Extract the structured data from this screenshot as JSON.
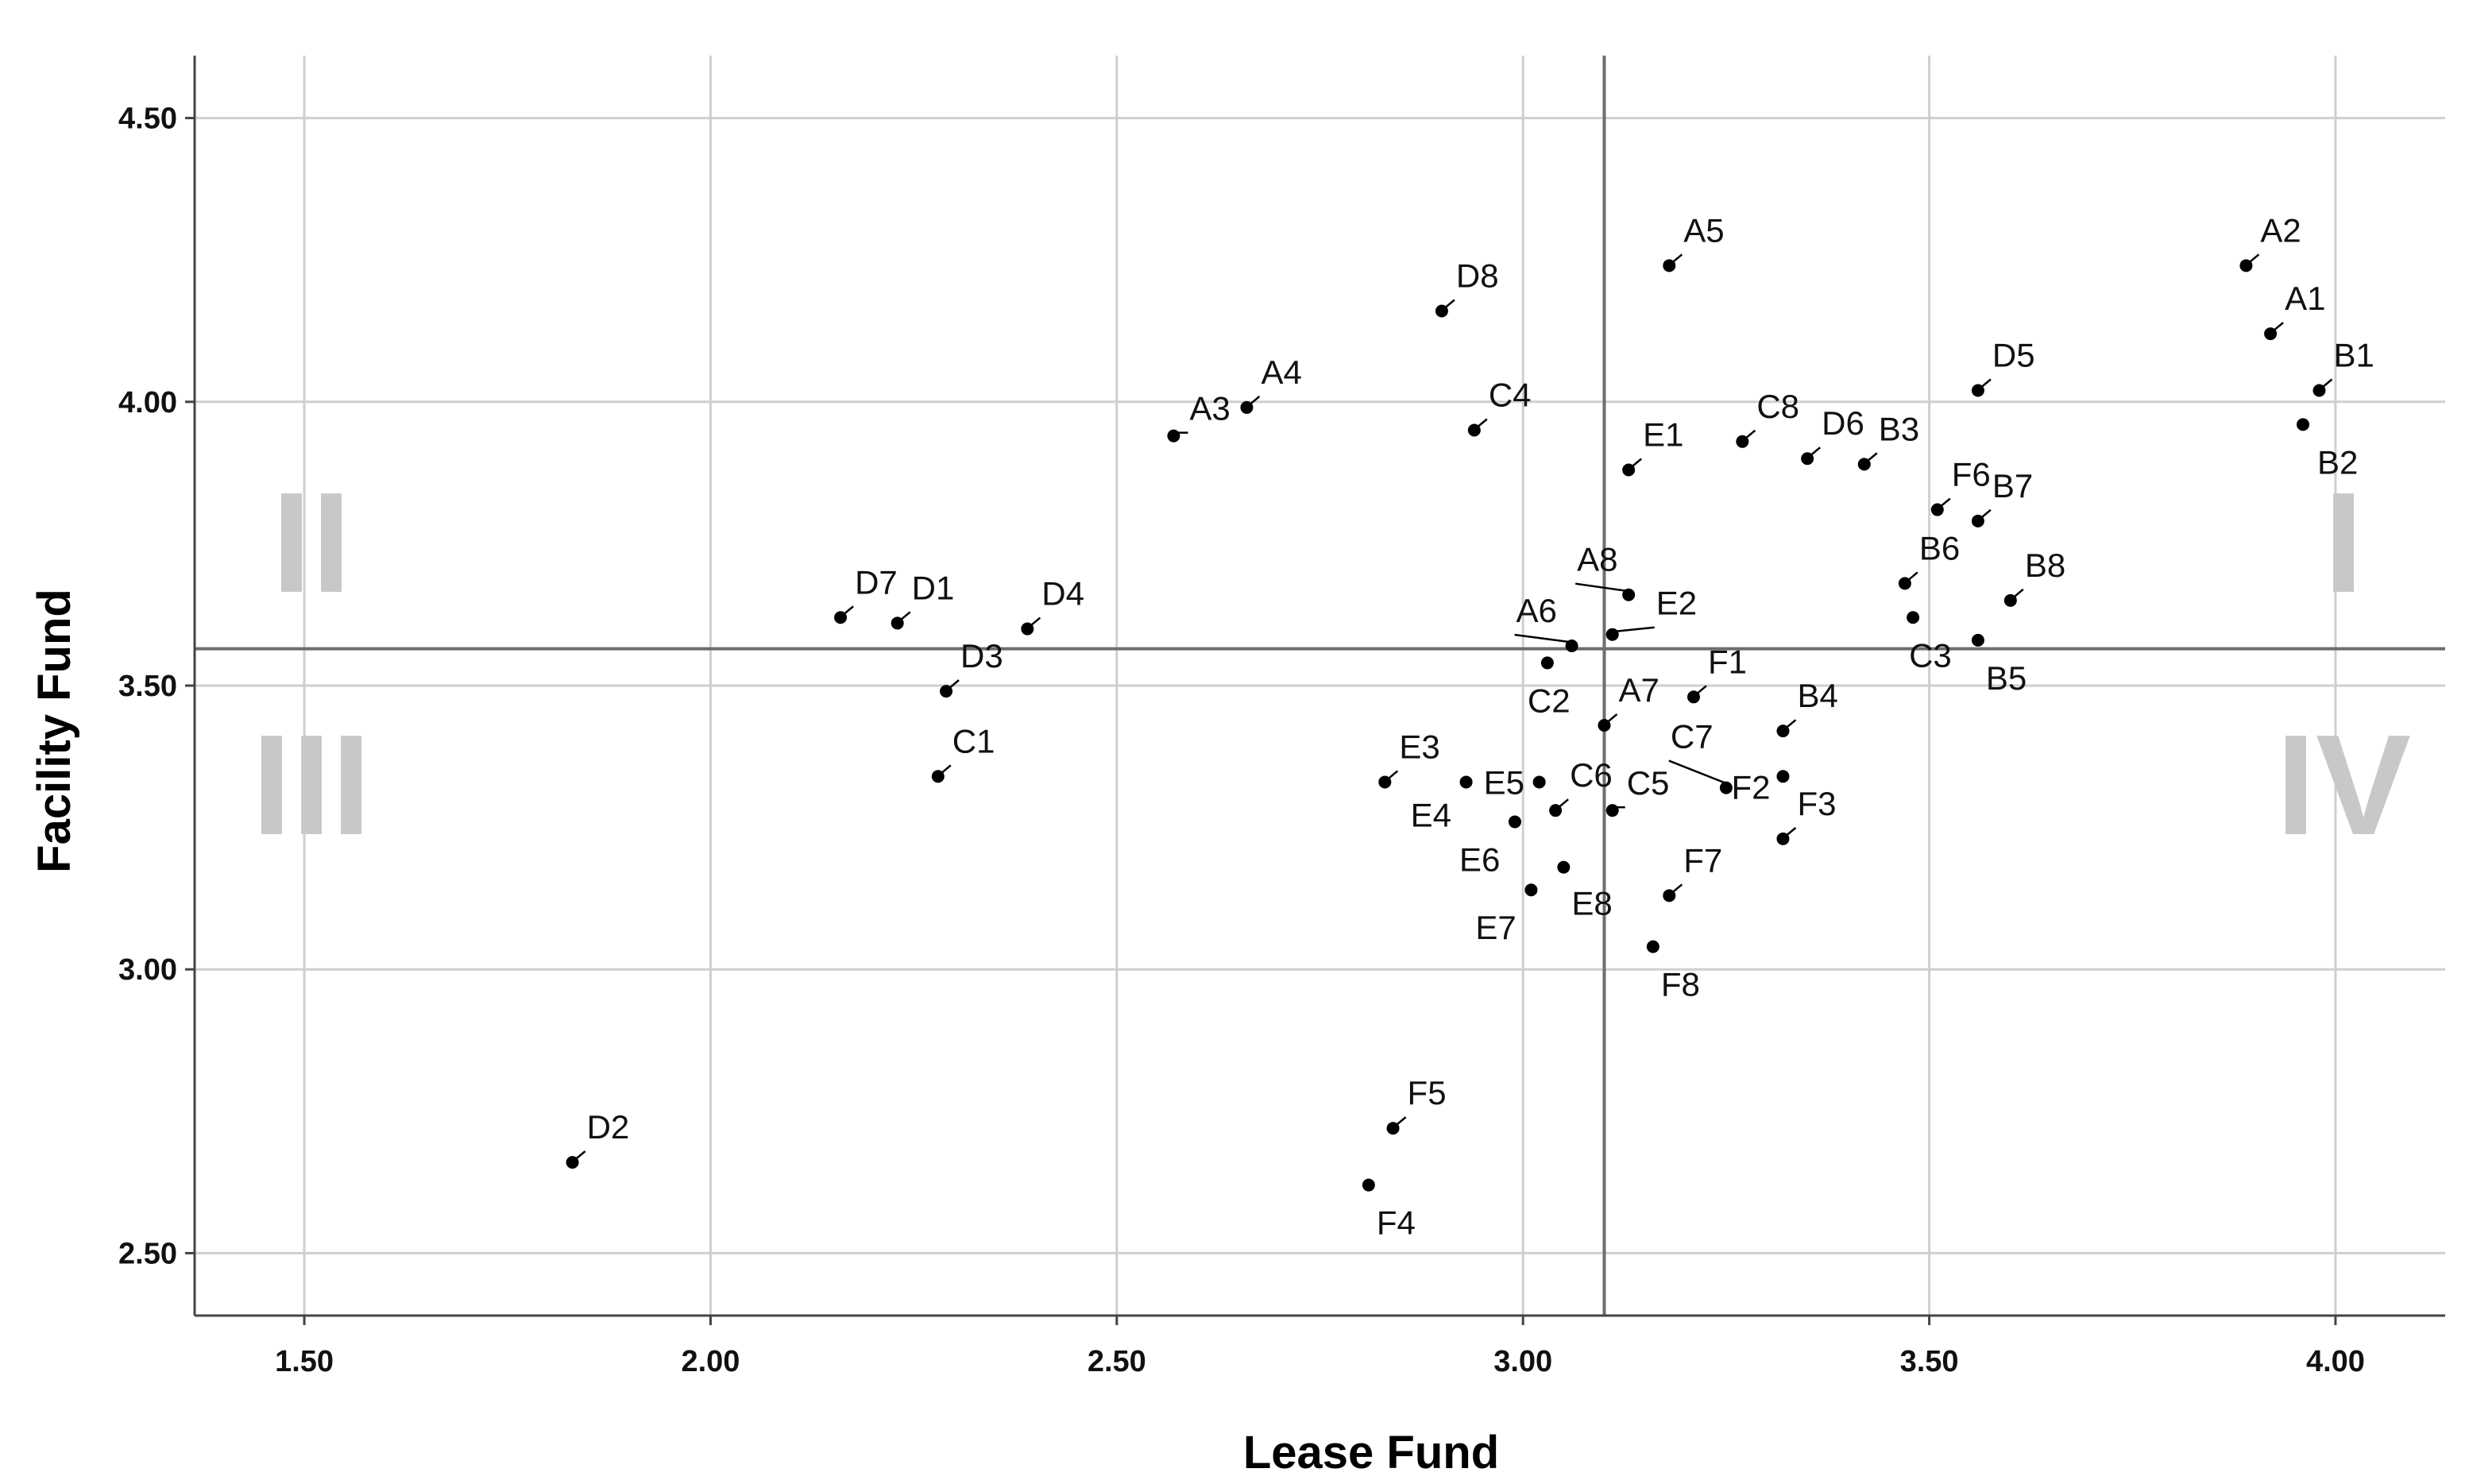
{
  "chart_data": {
    "type": "scatter",
    "xlabel": "Lease Fund",
    "ylabel": "Facility Fund",
    "xlim": [
      1.365,
      4.135
    ],
    "ylim": [
      2.39,
      4.61
    ],
    "x_ticks": [
      1.5,
      2.0,
      2.5,
      3.0,
      3.5,
      4.0
    ],
    "x_tick_labels": [
      "1.50",
      "2.00",
      "2.50",
      "3.00",
      "3.50",
      "4.00"
    ],
    "y_ticks": [
      2.5,
      3.0,
      3.5,
      4.0,
      4.5
    ],
    "y_tick_labels": [
      "2.50",
      "3.00",
      "3.50",
      "4.00",
      "4.50"
    ],
    "grid": true,
    "reference_lines": {
      "x_mean": 3.1,
      "y_mean": 3.565
    },
    "quadrant_labels": [
      "I",
      "II",
      "III",
      "IV"
    ],
    "point_color": "#000000",
    "points": [
      {
        "label": "A1",
        "x": 3.92,
        "y": 4.12
      },
      {
        "label": "A2",
        "x": 3.89,
        "y": 4.24
      },
      {
        "label": "A3",
        "x": 2.57,
        "y": 3.94
      },
      {
        "label": "A4",
        "x": 2.66,
        "y": 3.99
      },
      {
        "label": "A5",
        "x": 3.18,
        "y": 4.24
      },
      {
        "label": "A6",
        "x": 3.06,
        "y": 3.57
      },
      {
        "label": "A7",
        "x": 3.1,
        "y": 3.43
      },
      {
        "label": "A8",
        "x": 3.13,
        "y": 3.66
      },
      {
        "label": "B1",
        "x": 3.98,
        "y": 4.02
      },
      {
        "label": "B2",
        "x": 3.96,
        "y": 3.96
      },
      {
        "label": "B3",
        "x": 3.42,
        "y": 3.89
      },
      {
        "label": "B4",
        "x": 3.32,
        "y": 3.42
      },
      {
        "label": "B5",
        "x": 3.56,
        "y": 3.58
      },
      {
        "label": "B6",
        "x": 3.47,
        "y": 3.68
      },
      {
        "label": "B7",
        "x": 3.56,
        "y": 3.79
      },
      {
        "label": "B8",
        "x": 3.6,
        "y": 3.65
      },
      {
        "label": "C1",
        "x": 2.28,
        "y": 3.34
      },
      {
        "label": "C2",
        "x": 3.03,
        "y": 3.54
      },
      {
        "label": "C3",
        "x": 3.48,
        "y": 3.62
      },
      {
        "label": "C4",
        "x": 2.94,
        "y": 3.95
      },
      {
        "label": "C5",
        "x": 3.11,
        "y": 3.28
      },
      {
        "label": "C6",
        "x": 3.04,
        "y": 3.28
      },
      {
        "label": "C7",
        "x": 3.25,
        "y": 3.32
      },
      {
        "label": "C8",
        "x": 3.27,
        "y": 3.93
      },
      {
        "label": "D1",
        "x": 2.23,
        "y": 3.61
      },
      {
        "label": "D2",
        "x": 1.83,
        "y": 2.66
      },
      {
        "label": "D3",
        "x": 2.29,
        "y": 3.49
      },
      {
        "label": "D4",
        "x": 2.39,
        "y": 3.6
      },
      {
        "label": "D5",
        "x": 3.56,
        "y": 4.02
      },
      {
        "label": "D6",
        "x": 3.35,
        "y": 3.9
      },
      {
        "label": "D7",
        "x": 2.16,
        "y": 3.62
      },
      {
        "label": "D8",
        "x": 2.9,
        "y": 4.16
      },
      {
        "label": "E1",
        "x": 3.13,
        "y": 3.88
      },
      {
        "label": "E2",
        "x": 3.11,
        "y": 3.59
      },
      {
        "label": "E3",
        "x": 2.83,
        "y": 3.33
      },
      {
        "label": "E4",
        "x": 2.93,
        "y": 3.33
      },
      {
        "label": "E5",
        "x": 3.02,
        "y": 3.33
      },
      {
        "label": "E6",
        "x": 2.99,
        "y": 3.26
      },
      {
        "label": "E7",
        "x": 3.01,
        "y": 3.14
      },
      {
        "label": "E8",
        "x": 3.05,
        "y": 3.18
      },
      {
        "label": "F1",
        "x": 3.21,
        "y": 3.48
      },
      {
        "label": "F2",
        "x": 3.32,
        "y": 3.34
      },
      {
        "label": "F3",
        "x": 3.32,
        "y": 3.23
      },
      {
        "label": "F4",
        "x": 2.81,
        "y": 2.62
      },
      {
        "label": "F5",
        "x": 2.84,
        "y": 2.72
      },
      {
        "label": "F6",
        "x": 3.51,
        "y": 3.81
      },
      {
        "label": "F7",
        "x": 3.18,
        "y": 3.13
      },
      {
        "label": "F8",
        "x": 3.16,
        "y": 3.04
      }
    ]
  }
}
